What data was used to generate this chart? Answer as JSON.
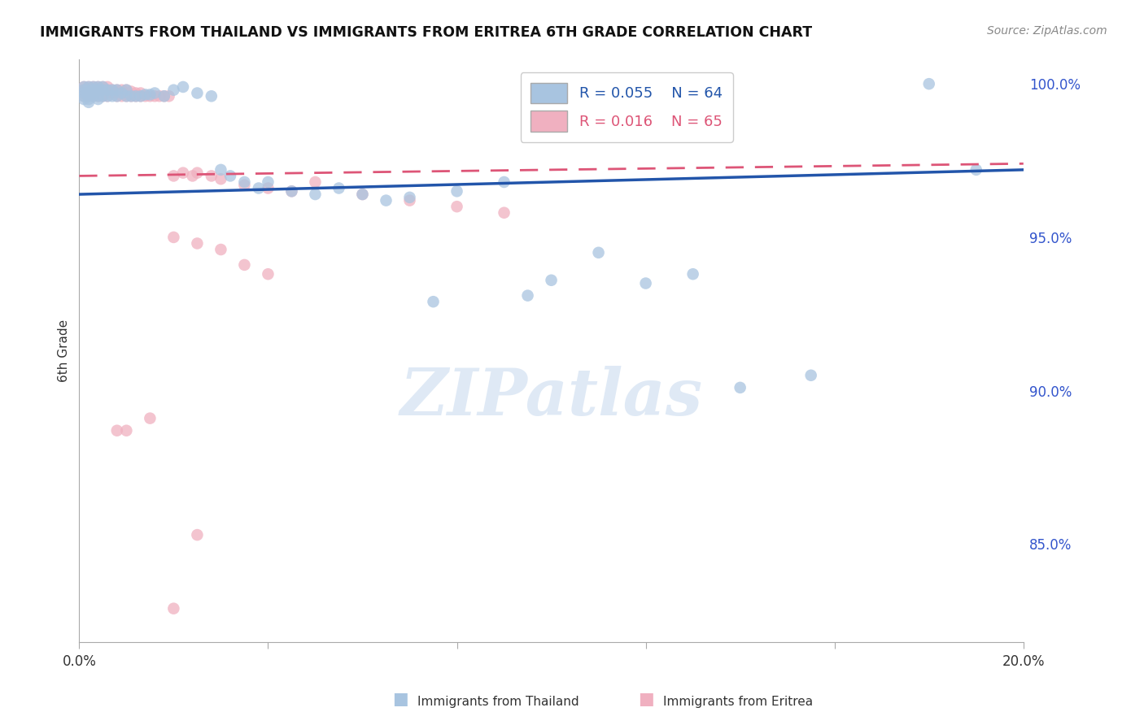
{
  "title": "IMMIGRANTS FROM THAILAND VS IMMIGRANTS FROM ERITREA 6TH GRADE CORRELATION CHART",
  "source": "Source: ZipAtlas.com",
  "ylabel": "6th Grade",
  "x_min": 0.0,
  "x_max": 0.2,
  "y_min": 0.818,
  "y_max": 1.008,
  "x_ticks": [
    0.0,
    0.04,
    0.08,
    0.12,
    0.16,
    0.2
  ],
  "x_tick_labels": [
    "0.0%",
    "",
    "",
    "",
    "",
    "20.0%"
  ],
  "y_ticks": [
    0.85,
    0.9,
    0.95,
    1.0
  ],
  "y_tick_labels": [
    "85.0%",
    "90.0%",
    "95.0%",
    "100.0%"
  ],
  "thailand_color": "#a8c4e0",
  "eritrea_color": "#f0b0c0",
  "thailand_line_color": "#2255aa",
  "eritrea_line_color": "#dd5577",
  "legend_R_thailand": "R = 0.055",
  "legend_N_thailand": "N = 64",
  "legend_R_eritrea": "R = 0.016",
  "legend_N_eritrea": "N = 65",
  "background_color": "#ffffff",
  "grid_color": "#cccccc",
  "watermark_text": "ZIPatlas",
  "thailand_line_x0": 0.0,
  "thailand_line_x1": 0.2,
  "thailand_line_y0": 0.964,
  "thailand_line_y1": 0.972,
  "eritrea_line_x0": 0.0,
  "eritrea_line_x1": 0.2,
  "eritrea_line_y0": 0.97,
  "eritrea_line_y1": 0.974,
  "thailand_scatter_x": [
    0.001,
    0.001,
    0.001,
    0.001,
    0.001,
    0.002,
    0.002,
    0.002,
    0.002,
    0.002,
    0.003,
    0.003,
    0.003,
    0.003,
    0.004,
    0.004,
    0.004,
    0.004,
    0.005,
    0.005,
    0.005,
    0.006,
    0.006,
    0.007,
    0.007,
    0.008,
    0.008,
    0.009,
    0.01,
    0.01,
    0.011,
    0.012,
    0.013,
    0.014,
    0.015,
    0.016,
    0.018,
    0.02,
    0.022,
    0.025,
    0.028,
    0.03,
    0.032,
    0.035,
    0.038,
    0.04,
    0.045,
    0.05,
    0.055,
    0.06,
    0.065,
    0.07,
    0.08,
    0.09,
    0.1,
    0.11,
    0.12,
    0.13,
    0.14,
    0.155,
    0.18,
    0.19,
    0.095,
    0.075
  ],
  "thailand_scatter_y": [
    0.999,
    0.998,
    0.997,
    0.996,
    0.995,
    0.999,
    0.997,
    0.996,
    0.995,
    0.994,
    0.999,
    0.998,
    0.997,
    0.996,
    0.999,
    0.998,
    0.996,
    0.995,
    0.999,
    0.998,
    0.996,
    0.998,
    0.996,
    0.998,
    0.996,
    0.998,
    0.996,
    0.997,
    0.998,
    0.996,
    0.996,
    0.996,
    0.996,
    0.9965,
    0.9965,
    0.997,
    0.996,
    0.998,
    0.999,
    0.997,
    0.996,
    0.972,
    0.97,
    0.968,
    0.966,
    0.968,
    0.965,
    0.964,
    0.966,
    0.964,
    0.962,
    0.963,
    0.965,
    0.968,
    0.936,
    0.945,
    0.935,
    0.938,
    0.901,
    0.905,
    1.0,
    0.972,
    0.931,
    0.929
  ],
  "eritrea_scatter_x": [
    0.001,
    0.001,
    0.001,
    0.001,
    0.002,
    0.002,
    0.002,
    0.002,
    0.003,
    0.003,
    0.003,
    0.003,
    0.004,
    0.004,
    0.004,
    0.005,
    0.005,
    0.005,
    0.006,
    0.006,
    0.006,
    0.007,
    0.007,
    0.008,
    0.008,
    0.009,
    0.009,
    0.01,
    0.01,
    0.011,
    0.011,
    0.012,
    0.012,
    0.013,
    0.013,
    0.014,
    0.015,
    0.016,
    0.017,
    0.018,
    0.019,
    0.02,
    0.022,
    0.024,
    0.025,
    0.028,
    0.03,
    0.035,
    0.04,
    0.045,
    0.05,
    0.06,
    0.07,
    0.08,
    0.09,
    0.02,
    0.025,
    0.03,
    0.035,
    0.04,
    0.015,
    0.01,
    0.008,
    0.025,
    0.02
  ],
  "eritrea_scatter_y": [
    0.999,
    0.998,
    0.997,
    0.996,
    0.999,
    0.998,
    0.997,
    0.996,
    0.999,
    0.998,
    0.997,
    0.996,
    0.999,
    0.998,
    0.996,
    0.999,
    0.998,
    0.996,
    0.999,
    0.998,
    0.996,
    0.998,
    0.997,
    0.998,
    0.996,
    0.998,
    0.996,
    0.998,
    0.996,
    0.9975,
    0.996,
    0.997,
    0.996,
    0.997,
    0.996,
    0.996,
    0.996,
    0.996,
    0.996,
    0.996,
    0.996,
    0.97,
    0.971,
    0.97,
    0.971,
    0.97,
    0.969,
    0.967,
    0.966,
    0.965,
    0.968,
    0.964,
    0.962,
    0.96,
    0.958,
    0.95,
    0.948,
    0.946,
    0.941,
    0.938,
    0.891,
    0.887,
    0.887,
    0.853,
    0.829
  ]
}
